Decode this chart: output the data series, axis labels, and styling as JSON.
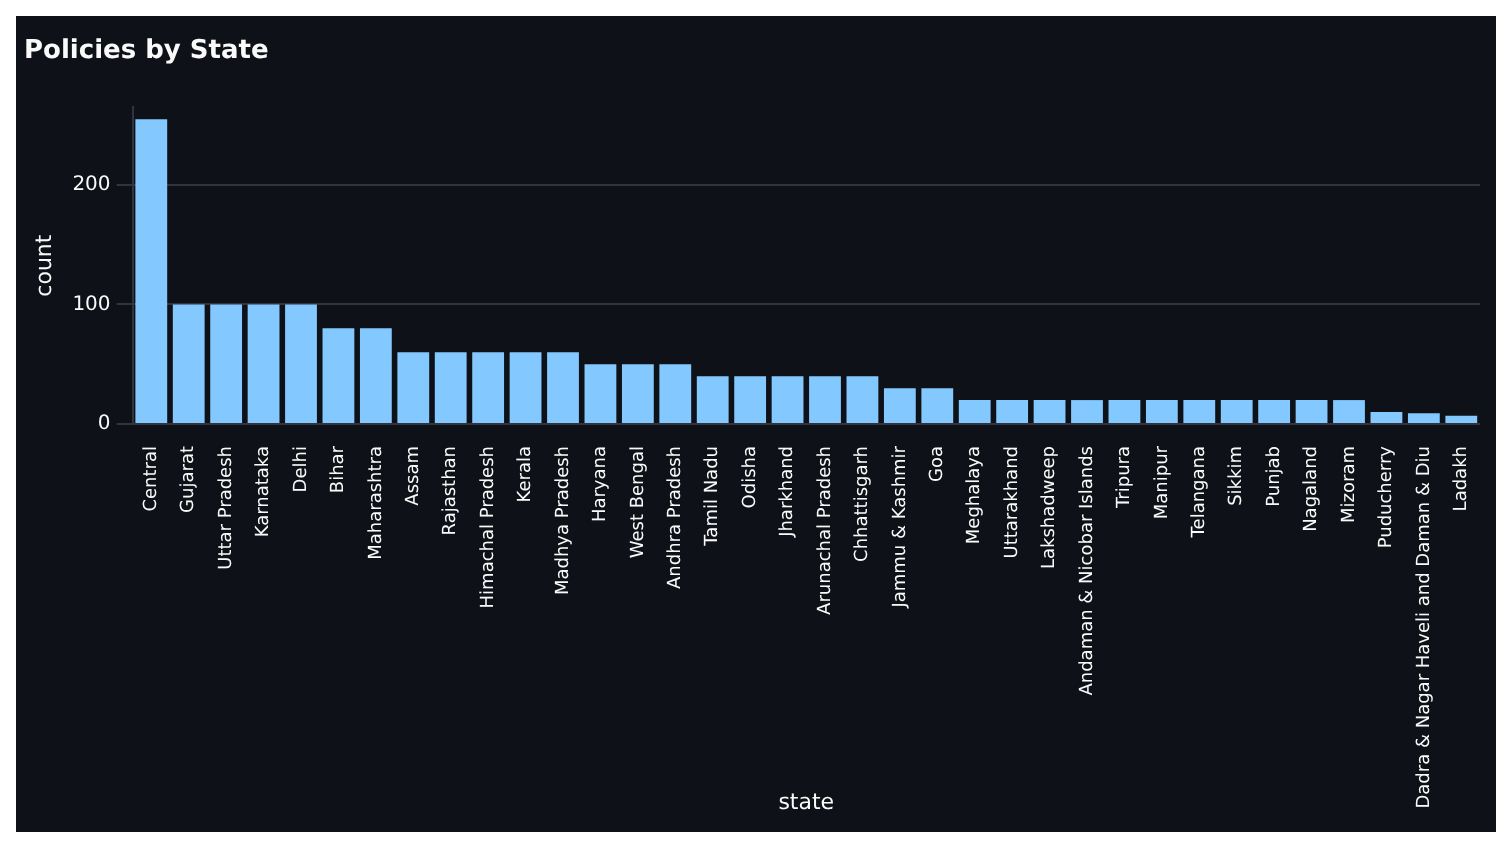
{
  "chart_data": {
    "type": "bar",
    "title": "Policies by State",
    "xlabel": "state",
    "ylabel": "count",
    "categories": [
      "Central",
      "Gujarat",
      "Uttar Pradesh",
      "Karnataka",
      "Delhi",
      "Bihar",
      "Maharashtra",
      "Assam",
      "Rajasthan",
      "Himachal Pradesh",
      "Kerala",
      "Madhya Pradesh",
      "Haryana",
      "West Bengal",
      "Andhra Pradesh",
      "Tamil Nadu",
      "Odisha",
      "Jharkhand",
      "Arunachal Pradesh",
      "Chhattisgarh",
      "Jammu & Kashmir",
      "Goa",
      "Meghalaya",
      "Uttarakhand",
      "Lakshadweep",
      "Andaman & Nicobar Islands",
      "Tripura",
      "Manipur",
      "Telangana",
      "Sikkim",
      "Punjab",
      "Nagaland",
      "Mizoram",
      "Puducherry",
      "Dadra & Nagar Haveli and Daman & Diu",
      "Ladakh"
    ],
    "values": [
      255,
      100,
      100,
      100,
      100,
      80,
      80,
      60,
      60,
      60,
      60,
      60,
      50,
      50,
      50,
      40,
      40,
      40,
      40,
      40,
      30,
      30,
      20,
      20,
      20,
      20,
      20,
      20,
      20,
      20,
      20,
      20,
      20,
      10,
      9,
      7
    ],
    "color": "#83c9ff",
    "ylim": [
      0,
      265
    ],
    "yticks": [
      0,
      100,
      200
    ],
    "grid": "y",
    "legend": false
  }
}
